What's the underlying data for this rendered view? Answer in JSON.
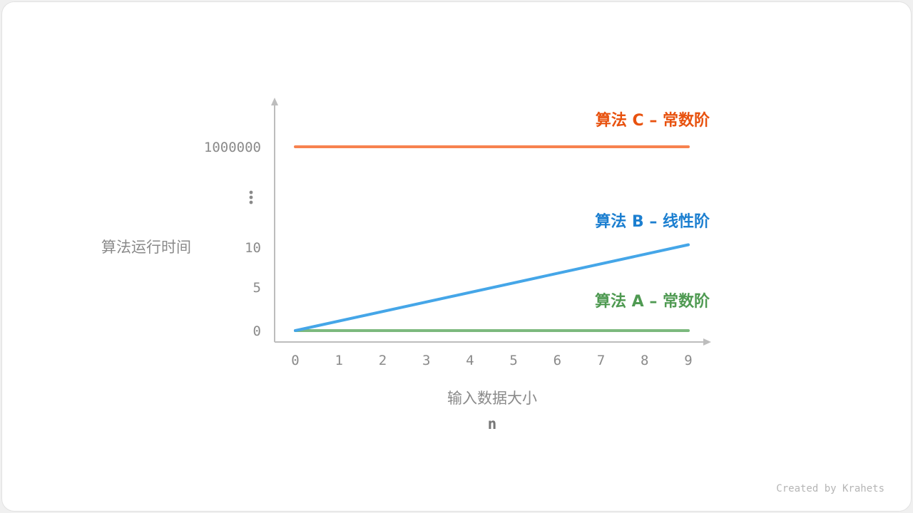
{
  "chart_data": {
    "type": "line",
    "xlabel": "输入数据大小",
    "xlabel_sub": "n",
    "ylabel": "算法运行时间",
    "x_ticks": [
      "0",
      "1",
      "2",
      "3",
      "4",
      "5",
      "6",
      "7",
      "8",
      "9"
    ],
    "y_ticks": [
      "0",
      "5",
      "10",
      "⋮",
      "1000000"
    ],
    "y_axis_break": true,
    "xlim": [
      0,
      9
    ],
    "grid": false,
    "series": [
      {
        "name": "算法 A – 常数阶",
        "x": [
          0,
          9
        ],
        "y": [
          0,
          0
        ],
        "line_color": "#7cb97e",
        "label_color": "#4f9a52"
      },
      {
        "name": "算法 B – 线性阶",
        "x": [
          0,
          9
        ],
        "y": [
          0,
          10.3
        ],
        "line_color": "#45a6e8",
        "label_color": "#1c7fd0"
      },
      {
        "name": "算法 C – 常数阶",
        "x": [
          0,
          9
        ],
        "y": [
          1000000,
          1000000
        ],
        "line_color": "#f7824f",
        "label_color": "#e8520f"
      }
    ]
  },
  "credit": "Created by Krahets"
}
